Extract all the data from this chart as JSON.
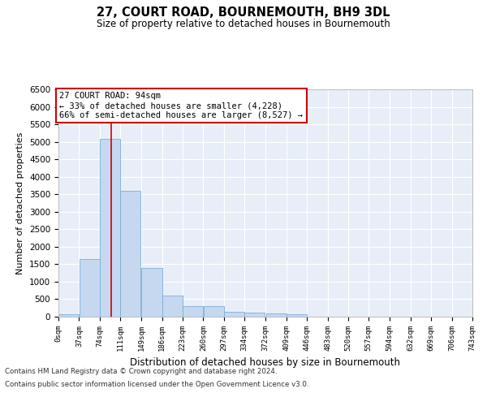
{
  "title": "27, COURT ROAD, BOURNEMOUTH, BH9 3DL",
  "subtitle": "Size of property relative to detached houses in Bournemouth",
  "xlabel": "Distribution of detached houses by size in Bournemouth",
  "ylabel": "Number of detached properties",
  "bar_color": "#c5d8f0",
  "bar_edge_color": "#7aafd4",
  "background_color": "#e8eef8",
  "grid_color": "#ffffff",
  "vline_x": 94,
  "vline_color": "#cc0000",
  "bin_edges": [
    0,
    37,
    74,
    111,
    149,
    186,
    223,
    260,
    297,
    334,
    372,
    409,
    446,
    483,
    520,
    557,
    594,
    632,
    669,
    706,
    743
  ],
  "bar_heights": [
    70,
    1650,
    5080,
    3600,
    1400,
    610,
    300,
    300,
    145,
    110,
    90,
    60,
    0,
    0,
    0,
    0,
    0,
    0,
    0,
    0
  ],
  "tick_labels": [
    "0sqm",
    "37sqm",
    "74sqm",
    "111sqm",
    "149sqm",
    "186sqm",
    "223sqm",
    "260sqm",
    "297sqm",
    "334sqm",
    "372sqm",
    "409sqm",
    "446sqm",
    "483sqm",
    "520sqm",
    "557sqm",
    "594sqm",
    "632sqm",
    "669sqm",
    "706sqm",
    "743sqm"
  ],
  "ylim": [
    0,
    6500
  ],
  "yticks": [
    0,
    500,
    1000,
    1500,
    2000,
    2500,
    3000,
    3500,
    4000,
    4500,
    5000,
    5500,
    6000,
    6500
  ],
  "annotation_title": "27 COURT ROAD: 94sqm",
  "annotation_line1": "← 33% of detached houses are smaller (4,228)",
  "annotation_line2": "66% of semi-detached houses are larger (8,527) →",
  "annotation_box_color": "white",
  "annotation_border_color": "#cc0000",
  "footer_line1": "Contains HM Land Registry data © Crown copyright and database right 2024.",
  "footer_line2": "Contains public sector information licensed under the Open Government Licence v3.0."
}
